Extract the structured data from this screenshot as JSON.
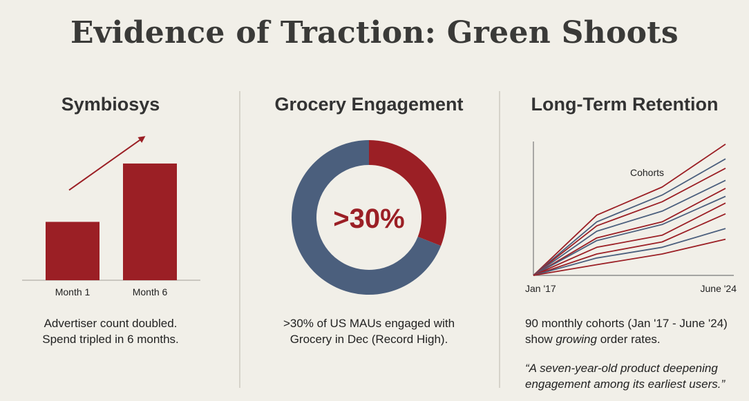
{
  "page": {
    "title": "Evidence of Traction: Green Shoots"
  },
  "colors": {
    "red": "#9b1f25",
    "blue": "#4b5f7d",
    "background": "#f1efe8"
  },
  "panels": {
    "symbiosys": {
      "title": "Symbiosys",
      "caption_line1": "Advertiser count doubled.",
      "caption_line2": "Spend tripled in 6 months."
    },
    "grocery": {
      "title": "Grocery Engagement",
      "center_label": ">30%",
      "caption_line1": ">30% of US MAUs engaged with",
      "caption_line2": "Grocery in Dec (Record High)."
    },
    "retention": {
      "title": "Long-Term Retention",
      "caption_line1": "90 monthly cohorts (Jan '17 - June '24)",
      "caption_line2_pre": "show ",
      "caption_line2_em": "growing",
      "caption_line2_post": " order rates.",
      "quote_line1": "“A seven-year-old product deepening",
      "quote_line2": "engagement among its earliest users.”"
    }
  },
  "chart_data": [
    {
      "type": "bar",
      "title": "Symbiosys",
      "categories": [
        "Month 1",
        "Month 6"
      ],
      "values": [
        1,
        2
      ],
      "ylim": [
        0,
        2.2
      ],
      "annotations": [
        "upward trend arrow"
      ]
    },
    {
      "type": "pie",
      "title": "Grocery Engagement",
      "donut": true,
      "slices": [
        {
          "name": "Engaged with Grocery",
          "value": 31,
          "color": "#9b1f25"
        },
        {
          "name": "Other",
          "value": 69,
          "color": "#4b5f7d"
        }
      ],
      "center_label": ">30%"
    },
    {
      "type": "line",
      "title": "Long-Term Retention",
      "x_labels": [
        "Jan '17",
        "June '24"
      ],
      "annotation": "Cohorts",
      "ylim": [
        0,
        100
      ],
      "series": [
        {
          "name": "cohort-1",
          "color": "#9b1f25",
          "points": [
            [
              0,
              0
            ],
            [
              0.33,
              45
            ],
            [
              0.67,
              66
            ],
            [
              1,
              98
            ]
          ]
        },
        {
          "name": "cohort-2",
          "color": "#4b5f7d",
          "points": [
            [
              0,
              0
            ],
            [
              0.33,
              40
            ],
            [
              0.67,
              60
            ],
            [
              1,
              87
            ]
          ]
        },
        {
          "name": "cohort-3",
          "color": "#9b1f25",
          "points": [
            [
              0,
              0
            ],
            [
              0.33,
              37
            ],
            [
              0.67,
              55
            ],
            [
              1,
              80
            ]
          ]
        },
        {
          "name": "cohort-4",
          "color": "#4b5f7d",
          "points": [
            [
              0,
              0
            ],
            [
              0.33,
              33
            ],
            [
              0.67,
              48
            ],
            [
              1,
              71
            ]
          ]
        },
        {
          "name": "cohort-5",
          "color": "#9b1f25",
          "points": [
            [
              0,
              0
            ],
            [
              0.33,
              28
            ],
            [
              0.67,
              40
            ],
            [
              1,
              65
            ]
          ]
        },
        {
          "name": "cohort-6",
          "color": "#4b5f7d",
          "points": [
            [
              0,
              0
            ],
            [
              0.33,
              26
            ],
            [
              0.67,
              38
            ],
            [
              1,
              59
            ]
          ]
        },
        {
          "name": "cohort-7",
          "color": "#9b1f25",
          "points": [
            [
              0,
              0
            ],
            [
              0.33,
              21
            ],
            [
              0.67,
              30
            ],
            [
              1,
              54
            ]
          ]
        },
        {
          "name": "cohort-8",
          "color": "#9b1f25",
          "points": [
            [
              0,
              0
            ],
            [
              0.33,
              16
            ],
            [
              0.67,
              25
            ],
            [
              1,
              46
            ]
          ]
        },
        {
          "name": "cohort-9",
          "color": "#4b5f7d",
          "points": [
            [
              0,
              0
            ],
            [
              0.33,
              13
            ],
            [
              0.67,
              21
            ],
            [
              1,
              35
            ]
          ]
        },
        {
          "name": "cohort-10",
          "color": "#9b1f25",
          "points": [
            [
              0,
              0
            ],
            [
              0.33,
              8
            ],
            [
              0.67,
              16
            ],
            [
              1,
              27
            ]
          ]
        }
      ]
    }
  ]
}
